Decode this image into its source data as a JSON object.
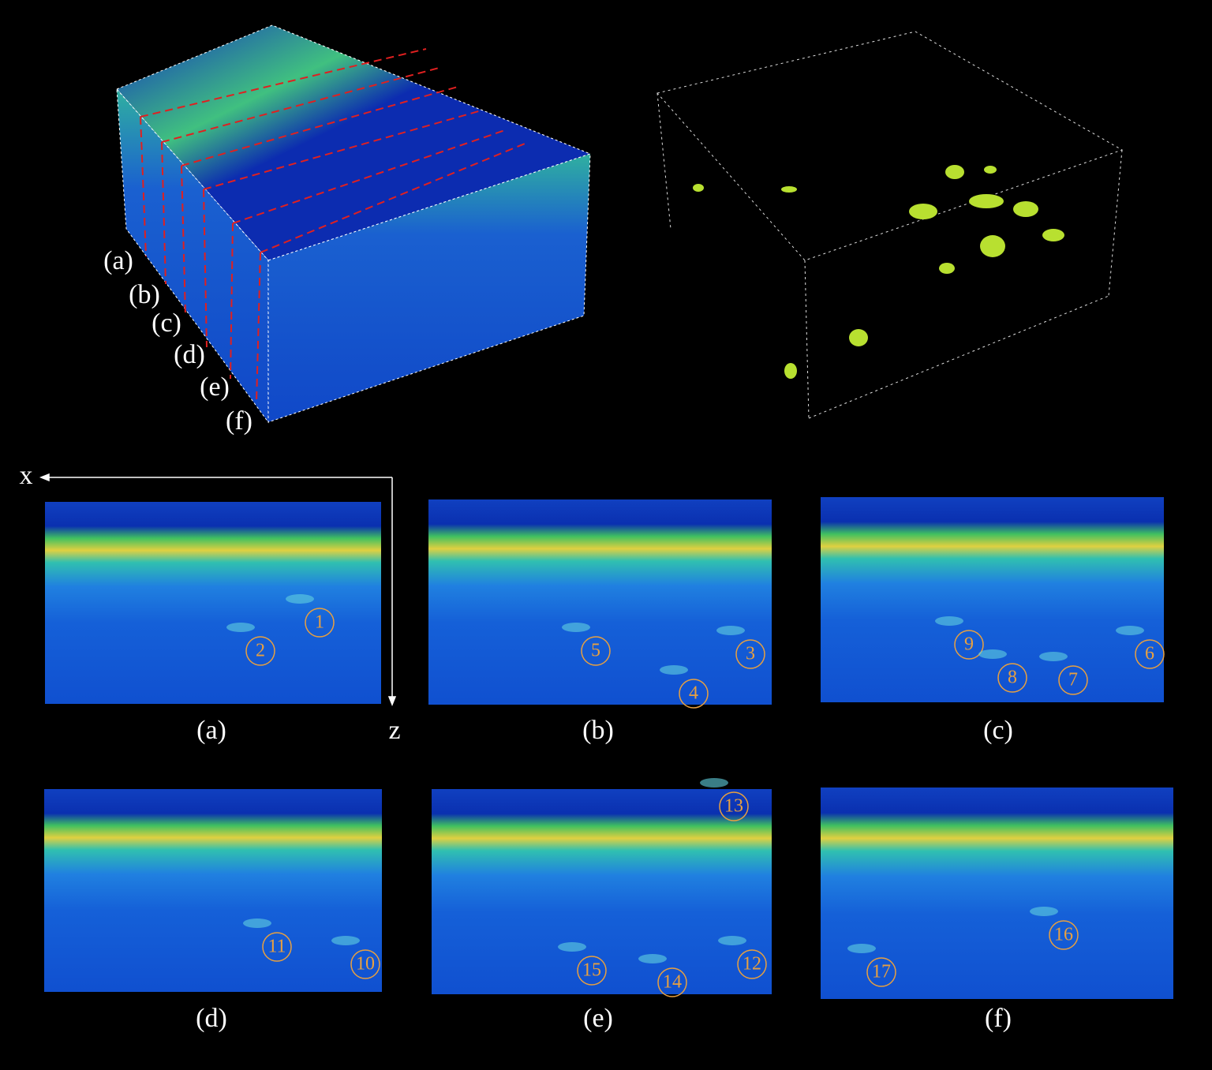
{
  "volume_labels": [
    "(a)",
    "(b)",
    "(c)",
    "(d)",
    "(e)",
    "(f)"
  ],
  "axes": {
    "x": "x",
    "z": "z"
  },
  "panels": [
    {
      "caption": "(a)",
      "markers": [
        "1",
        "2"
      ]
    },
    {
      "caption": "(b)",
      "markers": [
        "5",
        "3",
        "4"
      ]
    },
    {
      "caption": "(c)",
      "markers": [
        "9",
        "6",
        "8",
        "7"
      ]
    },
    {
      "caption": "(d)",
      "markers": [
        "11",
        "10"
      ]
    },
    {
      "caption": "(e)",
      "markers": [
        "13",
        "15",
        "14",
        "12"
      ]
    },
    {
      "caption": "(f)",
      "markers": [
        "16",
        "17"
      ]
    }
  ]
}
